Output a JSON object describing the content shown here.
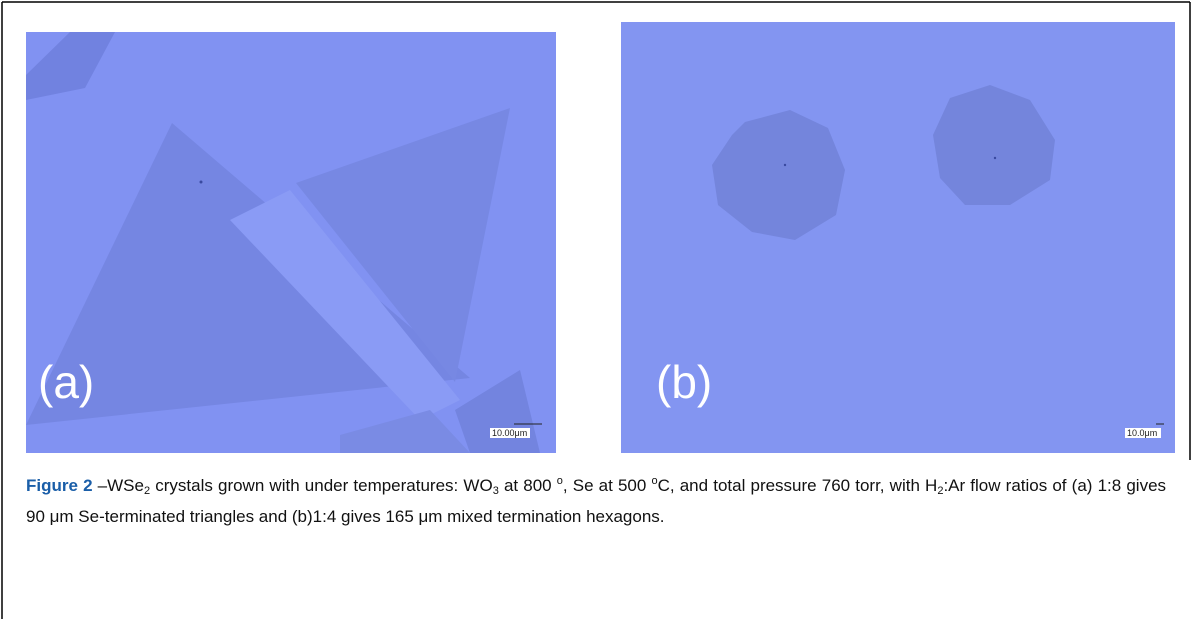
{
  "figure": {
    "panels": [
      {
        "label": "(a)",
        "scale_bar": "10.00μm"
      },
      {
        "label": "(b)",
        "scale_bar": "10.0μm"
      }
    ],
    "caption": {
      "parts": [
        "Figure 2",
        " –WSe",
        "2",
        " crystals grown with under temperatures: WO",
        "3",
        " at 800 ",
        "o",
        ", Se at 500 ",
        "o",
        "C, and total pressure 760 torr, with H",
        "2",
        ":Ar flow ratios of (a) 1:8 gives 90 μm Se-terminated triangles and (b)1:4 gives 165 μm mixed termination hexagons."
      ]
    }
  }
}
